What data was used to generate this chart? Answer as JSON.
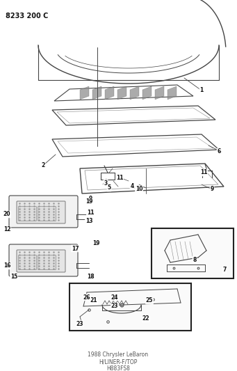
{
  "bg_color": "#ffffff",
  "line_color": "#444444",
  "fig_width": 3.41,
  "fig_height": 5.33,
  "dpi": 100,
  "header_text": "8233 200 C",
  "title_line1": "1988 Chrysler LeBaron",
  "title_line2": "H/LINER-F/TOP",
  "title_line3": "H883FS8"
}
